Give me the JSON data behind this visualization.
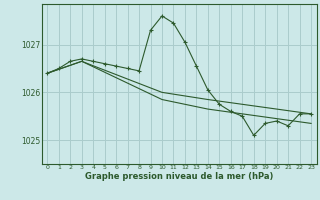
{
  "title": "Graphe pression niveau de la mer (hPa)",
  "bg_color": "#cce8e8",
  "grid_color": "#aacccc",
  "line_color": "#2d5a2d",
  "x_ticks": [
    0,
    1,
    2,
    3,
    4,
    5,
    6,
    7,
    8,
    9,
    10,
    11,
    12,
    13,
    14,
    15,
    16,
    17,
    18,
    19,
    20,
    21,
    22,
    23
  ],
  "y_ticks": [
    1025,
    1026,
    1027
  ],
  "ylim": [
    1024.5,
    1027.85
  ],
  "xlim": [
    -0.5,
    23.5
  ],
  "series": [
    {
      "x": [
        0,
        1,
        2,
        3,
        4,
        5,
        6,
        7,
        8,
        9,
        10,
        11,
        12,
        13,
        14,
        15,
        16,
        17,
        18,
        19,
        20,
        21,
        22,
        23
      ],
      "y": [
        1026.4,
        1026.5,
        1026.65,
        1026.7,
        1026.65,
        1026.6,
        1026.55,
        1026.5,
        1026.45,
        1027.3,
        1027.6,
        1027.45,
        1027.05,
        1026.55,
        1026.05,
        1025.75,
        1025.6,
        1025.5,
        1025.1,
        1025.35,
        1025.4,
        1025.3,
        1025.55,
        1025.55
      ],
      "marker": true
    },
    {
      "x": [
        0,
        3,
        10,
        14,
        23
      ],
      "y": [
        1026.4,
        1026.65,
        1026.0,
        1025.85,
        1025.55
      ],
      "marker": false
    },
    {
      "x": [
        0,
        3,
        10,
        14,
        23
      ],
      "y": [
        1026.4,
        1026.65,
        1025.85,
        1025.65,
        1025.35
      ],
      "marker": false
    }
  ]
}
